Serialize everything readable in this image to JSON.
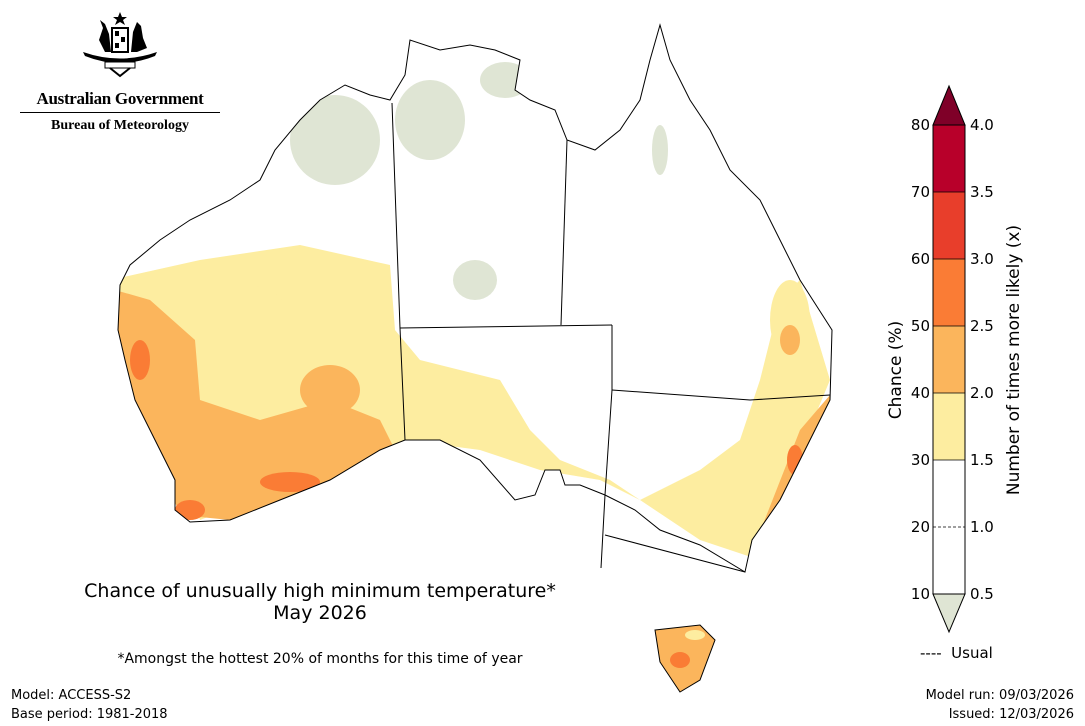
{
  "logo": {
    "government": "Australian Government",
    "bureau": "Bureau of Meteorology"
  },
  "map": {
    "title_line1": "Chance of unusually high minimum temperature*",
    "title_line2": "May 2026",
    "footnote": "*Amongst the hottest 20% of months for this time of year",
    "colors": {
      "usual": "#dfe5d4",
      "c30_40": "#fdeda0",
      "c40_50": "#fbb55c",
      "c50_60": "#fa7c35",
      "c60_70": "#e83e2b",
      "c70_80": "#b8002a",
      "c80plus": "#7f0028",
      "neutral": "#ffffff"
    }
  },
  "colorbar": {
    "left_label": "Chance (%)",
    "right_label": "Number of times more likely (x)",
    "left_ticks": [
      "80",
      "70",
      "60",
      "50",
      "40",
      "30",
      "20",
      "10"
    ],
    "right_ticks": [
      "4.0",
      "3.5",
      "3.0",
      "2.5",
      "2.0",
      "1.5",
      "1.0",
      "0.5"
    ],
    "usual_legend": "----  Usual"
  },
  "footer": {
    "model": "Model: ACCESS-S2",
    "base_period": "Base period: 1981-2018",
    "model_run": "Model run: 09/03/2026",
    "issued": "Issued: 12/03/2026"
  }
}
